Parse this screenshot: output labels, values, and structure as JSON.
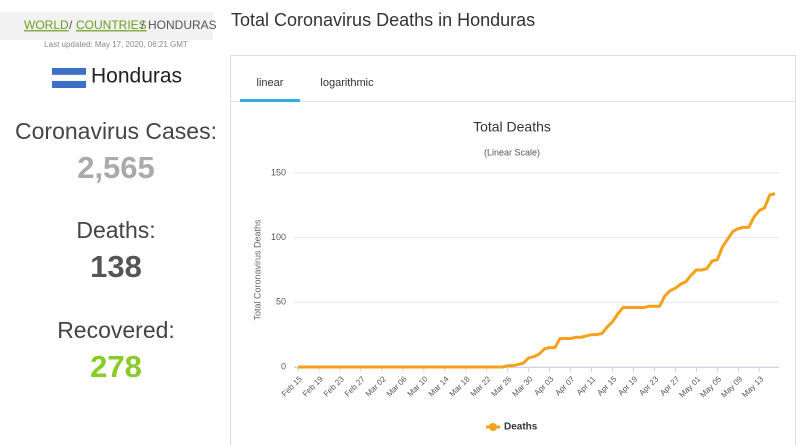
{
  "breadcrumb": [
    "WORLD",
    "COUNTRIES",
    "HONDURAS"
  ],
  "breadcrumb_separator": "/",
  "last_updated": "Last updated: May 17, 2020, 06:21 GMT",
  "country": "Honduras",
  "stats": [
    {
      "label": "Coronavirus Cases:",
      "value": "2,565"
    },
    {
      "label": "Deaths:",
      "value": "138"
    },
    {
      "label": "Recovered:",
      "value": "278"
    }
  ],
  "page_title": "Total Coronavirus Deaths in Honduras",
  "tabs": [
    "linear",
    "logarithmic"
  ],
  "chart_data": {
    "type": "line",
    "title": "Total Deaths",
    "subtitle": "(Linear Scale)",
    "y_label": "Total Coronavirus Deaths",
    "categories": [
      "Feb 15",
      null,
      null,
      null,
      "Feb 19",
      null,
      null,
      null,
      "Feb 23",
      null,
      null,
      null,
      "Feb 27",
      null,
      null,
      null,
      "Mar 02",
      null,
      null,
      null,
      "Mar 06",
      null,
      null,
      null,
      "Mar 10",
      null,
      null,
      null,
      "Mar 14",
      null,
      null,
      null,
      "Mar 18",
      null,
      null,
      null,
      "Mar 22",
      null,
      null,
      null,
      "Mar 26",
      null,
      null,
      null,
      "Mar 30",
      null,
      null,
      null,
      "Apr 03",
      null,
      null,
      null,
      "Apr 07",
      null,
      null,
      null,
      "Apr 11",
      null,
      null,
      null,
      "Apr 15",
      null,
      null,
      null,
      "Apr 19",
      null,
      null,
      null,
      "Apr 23",
      null,
      null,
      null,
      "Apr 27",
      null,
      null,
      null,
      "May 01",
      null,
      null,
      null,
      "May 05",
      null,
      null,
      null,
      "May 09",
      null,
      null,
      null,
      "May 13",
      null,
      null,
      null
    ],
    "series": [
      {
        "name": "Deaths",
        "color": "#f7a01d",
        "values": [
          0,
          0,
          0,
          0,
          0,
          0,
          0,
          0,
          0,
          0,
          0,
          0,
          0,
          0,
          0,
          0,
          0,
          0,
          0,
          0,
          0,
          0,
          0,
          0,
          0,
          0,
          0,
          0,
          0,
          0,
          0,
          0,
          0,
          0,
          0,
          0,
          0,
          0,
          0,
          0,
          1,
          1,
          2,
          3,
          7,
          8,
          10,
          14,
          15,
          15,
          22,
          22,
          22,
          23,
          23,
          24,
          25,
          25,
          26,
          31,
          35,
          41,
          46,
          46,
          46,
          46,
          46,
          47,
          47,
          47,
          55,
          59,
          61,
          64,
          66,
          71,
          75,
          75,
          76,
          82,
          83,
          93,
          99,
          105,
          107,
          108,
          108,
          116,
          121,
          123,
          133,
          134
        ]
      }
    ],
    "ylim": [
      0,
      150
    ],
    "yticks": [
      0,
      50,
      100,
      150
    ],
    "grid": true
  }
}
